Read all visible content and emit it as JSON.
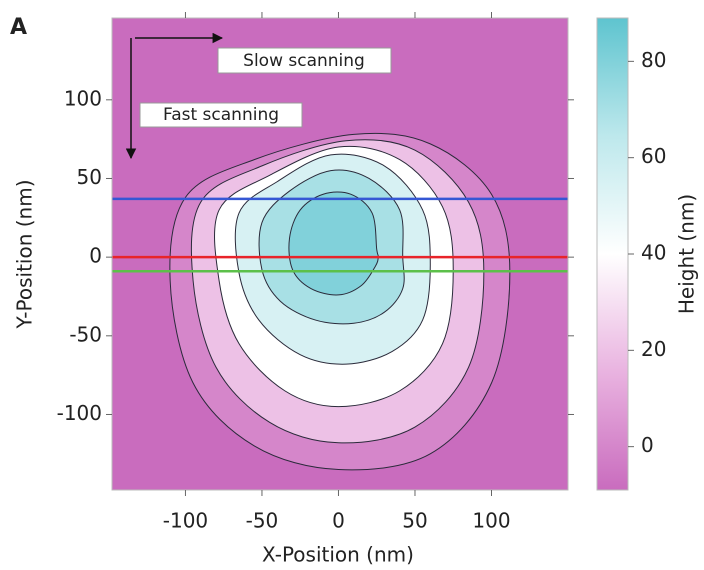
{
  "chart_data": {
    "type": "contour",
    "panel_label": "A",
    "xlabel": "X-Position (nm)",
    "ylabel": "Y-Position (nm)",
    "colorbar_label": "Height (nm)",
    "xlim": [
      -148,
      150
    ],
    "ylim": [
      -148,
      152
    ],
    "clim": [
      -9,
      89
    ],
    "xticks": [
      -100,
      -50,
      0,
      50,
      100
    ],
    "yticks": [
      -100,
      -50,
      0,
      50,
      100
    ],
    "cticks": [
      0,
      20,
      40,
      60,
      80
    ],
    "colorscale": [
      "#c96cbe",
      "#e9b3e0",
      "#ffffff",
      "#bde8ec",
      "#5ec4cf"
    ],
    "contour_color": "#2a2a3a",
    "contours": [
      {
        "level": 0,
        "x": [
          112,
          100,
          60,
          10,
          -55,
          -100,
          -110,
          -95,
          -55,
          0,
          60,
          100
        ],
        "y": [
          -10,
          40,
          72,
          78,
          62,
          38,
          -15,
          -80,
          -120,
          -135,
          -125,
          -80
        ]
      },
      {
        "level": 20,
        "x": [
          95,
          85,
          50,
          5,
          -50,
          -90,
          -95,
          -80,
          -45,
          0,
          50,
          85
        ],
        "y": [
          -10,
          35,
          68,
          74,
          58,
          35,
          -15,
          -70,
          -105,
          -118,
          -108,
          -70
        ]
      },
      {
        "level": 40,
        "x": [
          75,
          68,
          40,
          0,
          -45,
          -78,
          -78,
          -65,
          -35,
          0,
          40,
          68
        ],
        "y": [
          -8,
          32,
          62,
          70,
          52,
          30,
          -15,
          -55,
          -85,
          -95,
          -85,
          -55
        ]
      },
      {
        "level": 55,
        "x": [
          60,
          55,
          30,
          -5,
          -40,
          -65,
          -65,
          -52,
          -25,
          5,
          35,
          55
        ],
        "y": [
          -5,
          30,
          58,
          65,
          48,
          28,
          -10,
          -40,
          -62,
          -68,
          -60,
          -40
        ]
      },
      {
        "level": 70,
        "x": [
          42,
          40,
          20,
          -5,
          -32,
          -50,
          -50,
          -38,
          -15,
          10,
          30,
          42
        ],
        "y": [
          0,
          30,
          50,
          55,
          42,
          22,
          -8,
          -28,
          -40,
          -42,
          -35,
          -20
        ]
      },
      {
        "level": 80,
        "x": [
          25,
          22,
          8,
          -10,
          -25,
          -32,
          -30,
          -18,
          0,
          15,
          24,
          26
        ],
        "y": [
          5,
          28,
          40,
          40,
          30,
          12,
          -8,
          -20,
          -24,
          -18,
          -6,
          0
        ]
      }
    ],
    "hlines": [
      {
        "y": 37,
        "color": "#3557d4"
      },
      {
        "y": 0,
        "color": "#e8242a"
      },
      {
        "y": -9,
        "color": "#5cc04a"
      }
    ],
    "annotations": [
      "Slow scanning",
      "Fast scanning"
    ]
  }
}
